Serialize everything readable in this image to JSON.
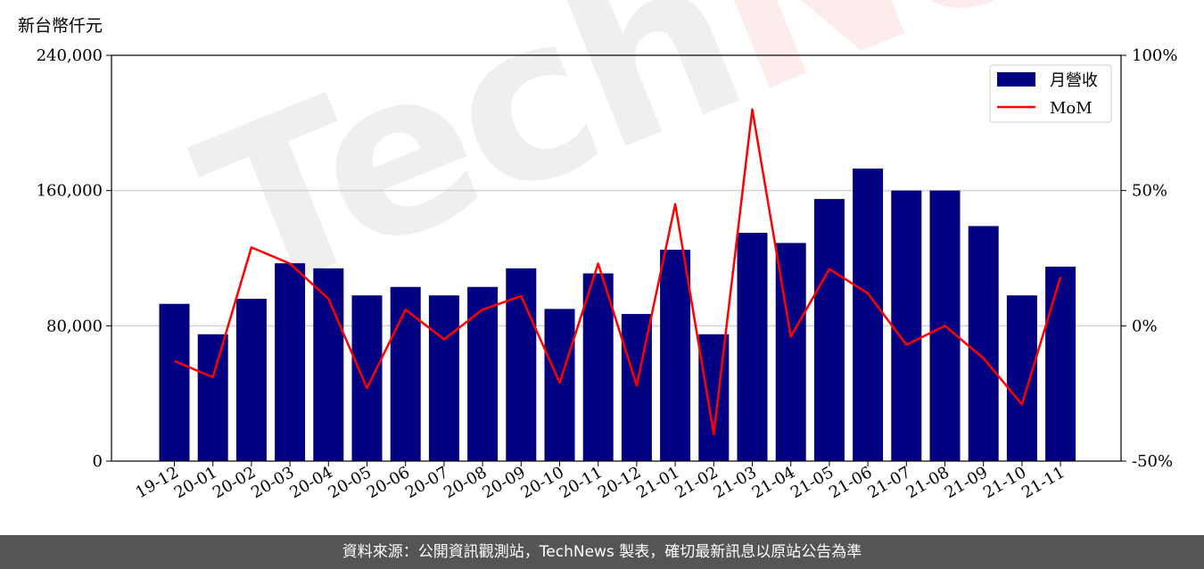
{
  "header": {
    "unit_label": "新台幣仟元"
  },
  "watermark": {
    "part1": "Tech",
    "part2": "News"
  },
  "footer": {
    "source_text": "資料來源：公開資訊觀測站，TechNews 製表，確切最新訊息以原站公告為準"
  },
  "colors": {
    "bar": "#000080",
    "line": "#ff0000",
    "grid": "#d3d3d3",
    "footer_bg": "#555555"
  },
  "chart_data": {
    "type": "bar",
    "categories": [
      "19-12",
      "20-01",
      "20-02",
      "20-03",
      "20-04",
      "20-05",
      "20-06",
      "20-07",
      "20-08",
      "20-09",
      "20-10",
      "20-11",
      "20-12",
      "21-01",
      "21-02",
      "21-03",
      "21-04",
      "21-05",
      "21-06",
      "21-07",
      "21-08",
      "21-09",
      "21-10",
      "21-11"
    ],
    "series": [
      {
        "name": "月營收",
        "type": "bar",
        "axis": "left",
        "values": [
          93000,
          75000,
          96000,
          117000,
          114000,
          98000,
          103000,
          98000,
          103000,
          114000,
          90000,
          111000,
          87000,
          125000,
          75000,
          135000,
          129000,
          155000,
          173000,
          160000,
          160000,
          139000,
          98000,
          115000
        ]
      },
      {
        "name": "MoM",
        "type": "line",
        "axis": "right",
        "values": [
          -13,
          -19,
          29,
          23,
          10,
          -23,
          6,
          -5,
          6,
          11,
          -21,
          23,
          -22,
          45,
          -40,
          80,
          -4,
          21,
          12,
          -7,
          0,
          -12,
          -29,
          18
        ]
      }
    ],
    "y_left": {
      "min": 0,
      "max": 240000,
      "ticks": [
        0,
        80000,
        160000,
        240000
      ],
      "tick_labels": [
        "0",
        "80,000",
        "160,000",
        "240,000"
      ]
    },
    "y_right": {
      "min": -50,
      "max": 100,
      "ticks": [
        -50,
        0,
        50,
        100
      ],
      "tick_labels": [
        "-50%",
        "0%",
        "50%",
        "100%"
      ]
    },
    "grid": "horizontal",
    "legend": {
      "position": "top-right",
      "entries": [
        "月營收",
        "MoM"
      ]
    }
  }
}
